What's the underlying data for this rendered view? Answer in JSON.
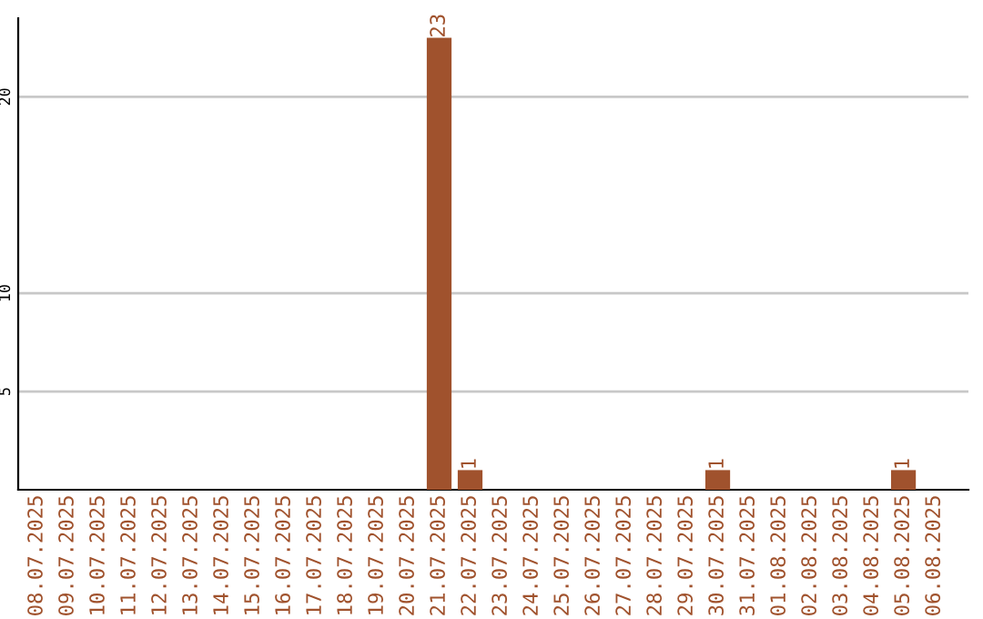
{
  "chart_data": {
    "type": "bar",
    "categories": [
      "08.07.2025",
      "09.07.2025",
      "10.07.2025",
      "11.07.2025",
      "12.07.2025",
      "13.07.2025",
      "14.07.2025",
      "15.07.2025",
      "16.07.2025",
      "17.07.2025",
      "18.07.2025",
      "19.07.2025",
      "20.07.2025",
      "21.07.2025",
      "22.07.2025",
      "23.07.2025",
      "24.07.2025",
      "25.07.2025",
      "26.07.2025",
      "27.07.2025",
      "28.07.2025",
      "29.07.2025",
      "30.07.2025",
      "31.07.2025",
      "01.08.2025",
      "02.08.2025",
      "03.08.2025",
      "04.08.2025",
      "05.08.2025",
      "06.08.2025"
    ],
    "values": [
      0,
      0,
      0,
      0,
      0,
      0,
      0,
      0,
      0,
      0,
      0,
      0,
      0,
      23,
      1,
      0,
      0,
      0,
      0,
      0,
      0,
      0,
      1,
      0,
      0,
      0,
      0,
      0,
      1,
      0
    ],
    "value_labels": [
      null,
      null,
      null,
      null,
      null,
      null,
      null,
      null,
      null,
      null,
      null,
      null,
      null,
      "23",
      "1",
      null,
      null,
      null,
      null,
      null,
      null,
      null,
      "1",
      null,
      null,
      null,
      null,
      null,
      "1",
      null
    ],
    "color": "#a0522d",
    "ylim": [
      0,
      24
    ],
    "yticks": [
      5,
      10,
      20
    ],
    "grid": "y"
  }
}
